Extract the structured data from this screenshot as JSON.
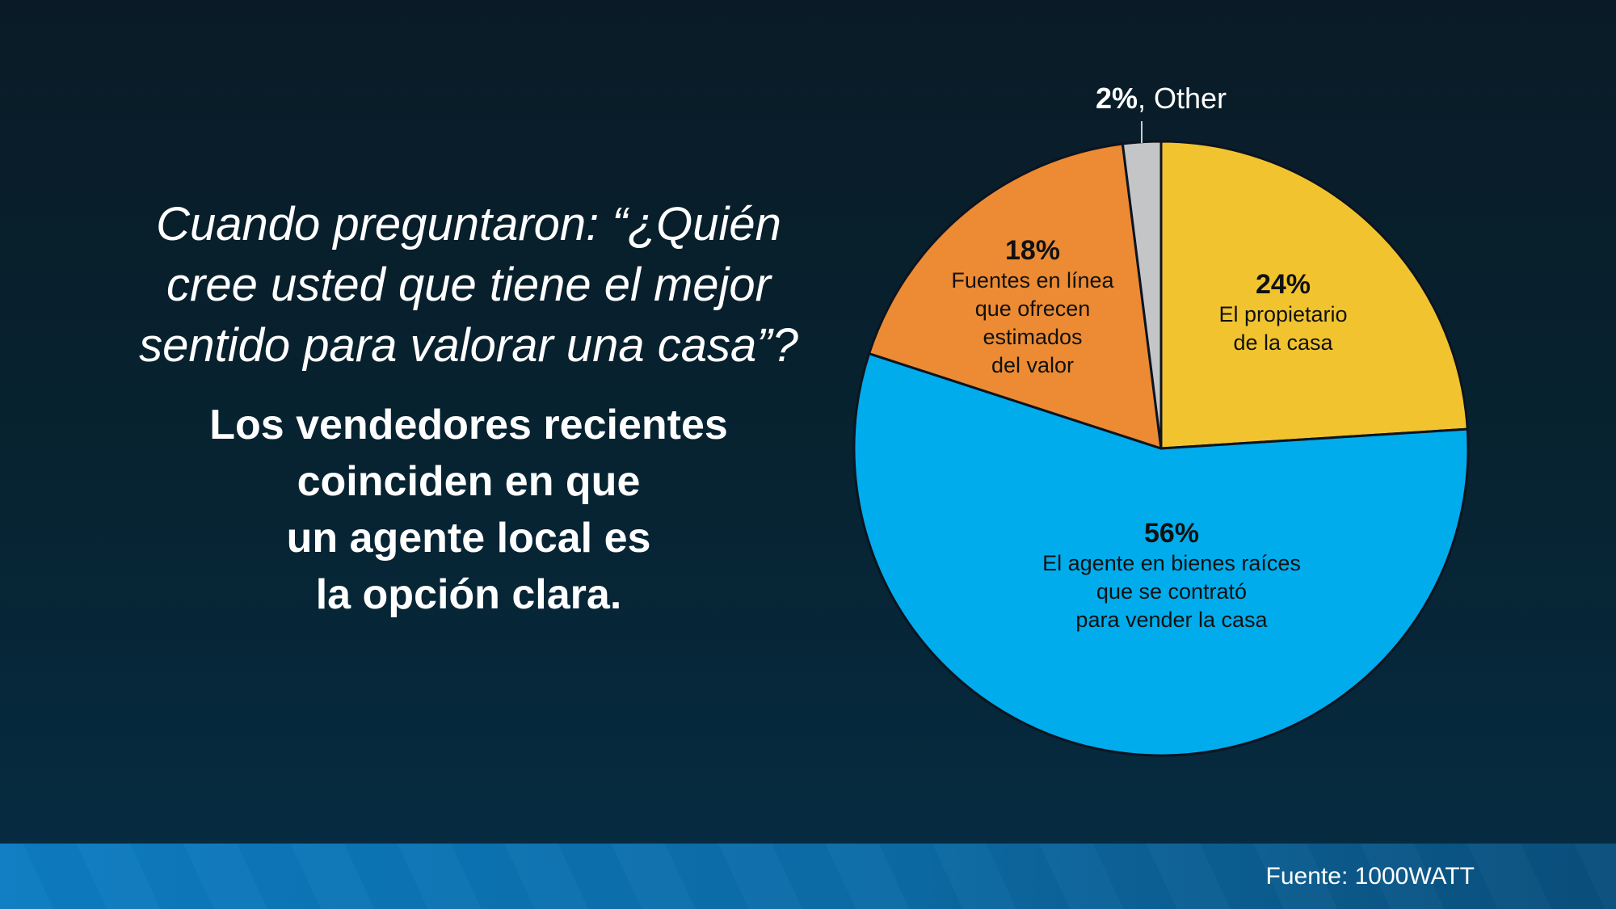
{
  "slide": {
    "question_lines": [
      "Cuando preguntaron: “¿Quién",
      "cree usted que tiene el mejor",
      "sentido para valorar una casa”?"
    ],
    "statement_lines": [
      "Los vendedores recientes",
      "coinciden en que",
      "un agente local es",
      "la opción clara."
    ],
    "source_label": "Fuente: 1000WATT"
  },
  "colors": {
    "background_top": "#0a1b27",
    "background_bottom": "#062c43",
    "bar_gradient_left": "#0d7cc2",
    "bar_gradient_right": "#0a4f7c",
    "text": "#ffffff",
    "pie_label_text": "#111111",
    "slice_outline": "#0d1420",
    "leader_line": "#c8cdd2"
  },
  "chart_data": {
    "type": "pie",
    "title": "",
    "start_angle_deg": 0,
    "direction": "clockwise",
    "legend": "none",
    "slices": [
      {
        "value": 24,
        "pct_label": "24%",
        "label_lines": [
          "El propietario",
          "de la casa"
        ],
        "label": "El propietario de la casa",
        "color": "#f1c42f"
      },
      {
        "value": 56,
        "pct_label": "56%",
        "label_lines": [
          "El agente en bienes raíces",
          "que se contrató",
          "para vender la casa"
        ],
        "label": "El agente en bienes raíces que se contrató para vender la casa",
        "color": "#00acec"
      },
      {
        "value": 18,
        "pct_label": "18%",
        "label_lines": [
          "Fuentes en línea",
          "que ofrecen",
          "estimados",
          "del valor"
        ],
        "label": "Fuentes en línea que ofrecen estimados del valor",
        "color": "#ec8b33"
      },
      {
        "value": 2,
        "pct_label": "2%",
        "callout_rest": ", Other",
        "label": "Other",
        "color": "#c4c5c7",
        "callout": true
      }
    ]
  }
}
